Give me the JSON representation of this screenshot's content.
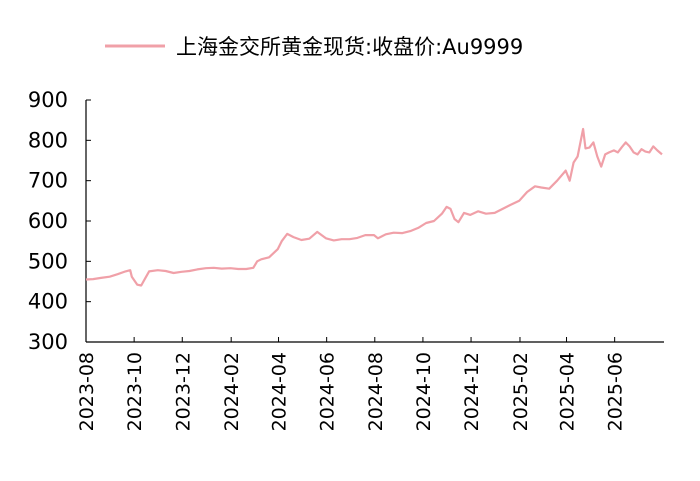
{
  "chart_data": {
    "type": "line",
    "title": "",
    "xlabel": "",
    "ylabel": "",
    "ylim": [
      300,
      900
    ],
    "yticks": [
      "900",
      "800",
      "700",
      "600",
      "500",
      "400",
      "300"
    ],
    "xticks": [
      "2023-08",
      "2023-10",
      "2023-12",
      "2024-02",
      "2024-04",
      "2024-06",
      "2024-08",
      "2024-10",
      "2024-12",
      "2025-02",
      "2025-04",
      "2025-06"
    ],
    "grid": false,
    "legend_position": "top",
    "series": [
      {
        "name": "上海金交所黄金现货:收盘价:Au9999",
        "color": "#F0A0A8",
        "points": [
          [
            "2023-08-01",
            455
          ],
          [
            "2023-08-10",
            456
          ],
          [
            "2023-08-20",
            459
          ],
          [
            "2023-08-31",
            462
          ],
          [
            "2023-09-10",
            468
          ],
          [
            "2023-09-20",
            475
          ],
          [
            "2023-09-26",
            478
          ],
          [
            "2023-09-28",
            462
          ],
          [
            "2023-10-05",
            442
          ],
          [
            "2023-10-10",
            440
          ],
          [
            "2023-10-15",
            458
          ],
          [
            "2023-10-20",
            475
          ],
          [
            "2023-10-31",
            478
          ],
          [
            "2023-11-10",
            476
          ],
          [
            "2023-11-20",
            471
          ],
          [
            "2023-11-30",
            474
          ],
          [
            "2023-12-10",
            476
          ],
          [
            "2023-12-20",
            480
          ],
          [
            "2023-12-31",
            483
          ],
          [
            "2024-01-10",
            484
          ],
          [
            "2024-01-20",
            482
          ],
          [
            "2024-01-31",
            483
          ],
          [
            "2024-02-10",
            481
          ],
          [
            "2024-02-20",
            481
          ],
          [
            "2024-02-29",
            484
          ],
          [
            "2024-03-05",
            500
          ],
          [
            "2024-03-10",
            505
          ],
          [
            "2024-03-20",
            510
          ],
          [
            "2024-03-31",
            530
          ],
          [
            "2024-04-05",
            550
          ],
          [
            "2024-04-12",
            568
          ],
          [
            "2024-04-20",
            560
          ],
          [
            "2024-04-30",
            553
          ],
          [
            "2024-05-10",
            556
          ],
          [
            "2024-05-20",
            573
          ],
          [
            "2024-05-31",
            557
          ],
          [
            "2024-06-10",
            552
          ],
          [
            "2024-06-20",
            555
          ],
          [
            "2024-06-30",
            555
          ],
          [
            "2024-07-10",
            558
          ],
          [
            "2024-07-20",
            565
          ],
          [
            "2024-07-31",
            565
          ],
          [
            "2024-08-05",
            557
          ],
          [
            "2024-08-15",
            567
          ],
          [
            "2024-08-25",
            571
          ],
          [
            "2024-09-05",
            570
          ],
          [
            "2024-09-15",
            575
          ],
          [
            "2024-09-25",
            583
          ],
          [
            "2024-10-05",
            595
          ],
          [
            "2024-10-15",
            600
          ],
          [
            "2024-10-25",
            618
          ],
          [
            "2024-10-31",
            635
          ],
          [
            "2024-11-05",
            630
          ],
          [
            "2024-11-10",
            605
          ],
          [
            "2024-11-15",
            597
          ],
          [
            "2024-11-22",
            620
          ],
          [
            "2024-11-30",
            615
          ],
          [
            "2024-12-10",
            624
          ],
          [
            "2024-12-20",
            618
          ],
          [
            "2024-12-31",
            620
          ],
          [
            "2025-01-10",
            630
          ],
          [
            "2025-01-20",
            640
          ],
          [
            "2025-01-31",
            650
          ],
          [
            "2025-02-10",
            672
          ],
          [
            "2025-02-20",
            686
          ],
          [
            "2025-02-28",
            683
          ],
          [
            "2025-03-10",
            680
          ],
          [
            "2025-03-20",
            700
          ],
          [
            "2025-03-31",
            725
          ],
          [
            "2025-04-05",
            700
          ],
          [
            "2025-04-10",
            745
          ],
          [
            "2025-04-15",
            760
          ],
          [
            "2025-04-22",
            828
          ],
          [
            "2025-04-25",
            780
          ],
          [
            "2025-04-30",
            782
          ],
          [
            "2025-05-05",
            795
          ],
          [
            "2025-05-10",
            760
          ],
          [
            "2025-05-15",
            735
          ],
          [
            "2025-05-20",
            765
          ],
          [
            "2025-05-25",
            770
          ],
          [
            "2025-05-31",
            775
          ],
          [
            "2025-06-05",
            770
          ],
          [
            "2025-06-10",
            783
          ],
          [
            "2025-06-15",
            795
          ],
          [
            "2025-06-20",
            785
          ],
          [
            "2025-06-25",
            770
          ],
          [
            "2025-06-30",
            765
          ],
          [
            "2025-07-05",
            778
          ],
          [
            "2025-07-10",
            772
          ],
          [
            "2025-07-15",
            770
          ],
          [
            "2025-07-20",
            785
          ],
          [
            "2025-07-25",
            775
          ],
          [
            "2025-07-31",
            765
          ]
        ]
      }
    ]
  }
}
